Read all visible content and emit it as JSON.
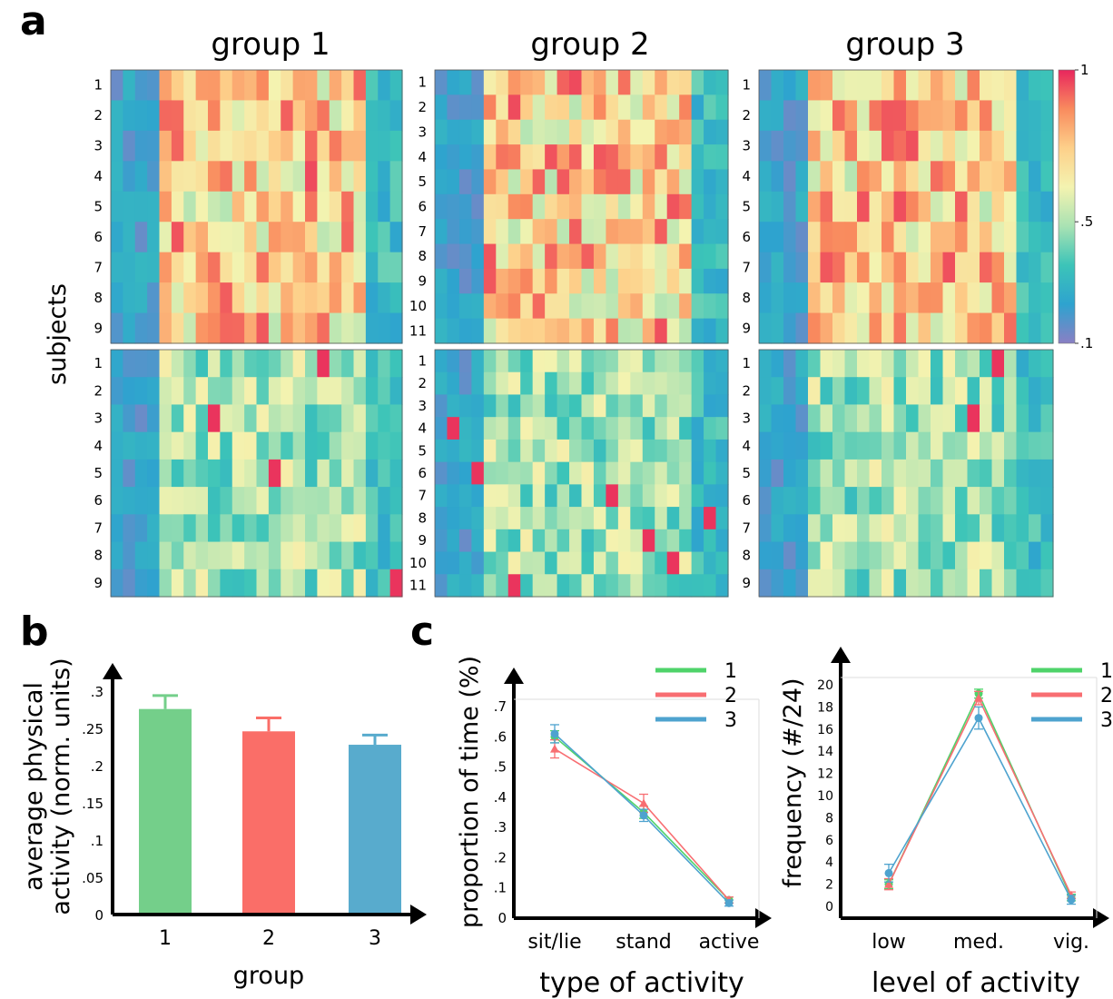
{
  "panels": {
    "a": "a",
    "b": "b",
    "c": "c"
  },
  "heatmaps": {
    "ylabel": "subjects",
    "groups": [
      {
        "title": "group 1",
        "rows": [
          "1",
          "2",
          "3",
          "4",
          "5",
          "6",
          "7",
          "8",
          "9"
        ]
      },
      {
        "title": "group 2",
        "rows": [
          "1",
          "2",
          "3",
          "4",
          "5",
          "6",
          "7",
          "8",
          "9",
          "10",
          "11"
        ]
      },
      {
        "title": "group 3",
        "rows": [
          "1",
          "2",
          "3",
          "4",
          "5",
          "6",
          "7",
          "8",
          "9"
        ]
      }
    ],
    "colorbar": {
      "ticks": [
        "1",
        ".5",
        ".1"
      ],
      "range": [
        0.1,
        1
      ],
      "colors": [
        "#8a7fc4",
        "#2ea3cf",
        "#3cc4b8",
        "#a9e2b3",
        "#f4f3b0",
        "#fdd08a",
        "#f98b5e",
        "#e8265d"
      ]
    },
    "columns": 24
  },
  "chart_data": [
    {
      "type": "bar",
      "panel": "b",
      "categories": [
        "1",
        "2",
        "3"
      ],
      "values": [
        0.276,
        0.246,
        0.228
      ],
      "errors": [
        0.018,
        0.018,
        0.013
      ],
      "colors": [
        "#74cf8a",
        "#fa6e68",
        "#58abcd"
      ],
      "xlabel": "group",
      "ylabel_line1": "average physical",
      "ylabel_line2": "activity (norm. units)",
      "ylim": [
        0,
        0.3
      ],
      "yticks": [
        "0",
        ".05",
        ".1",
        ".15",
        ".2",
        ".25",
        ".3"
      ]
    },
    {
      "type": "line",
      "panel": "c-left",
      "categories": [
        "sit/lie",
        "stand",
        "active"
      ],
      "series": [
        {
          "name": "1",
          "color": "#4fd36a",
          "values": [
            0.6,
            0.35,
            0.06
          ],
          "errors": [
            0.02,
            0.02,
            0.01
          ]
        },
        {
          "name": "2",
          "color": "#f86e72",
          "values": [
            0.56,
            0.38,
            0.06
          ],
          "errors": [
            0.03,
            0.03,
            0.01
          ]
        },
        {
          "name": "3",
          "color": "#4ea3cf",
          "values": [
            0.61,
            0.34,
            0.05
          ],
          "errors": [
            0.03,
            0.02,
            0.01
          ]
        }
      ],
      "xlabel": "type of activity",
      "ylabel": "proportion of time (%)",
      "ylim": [
        0,
        0.7
      ],
      "yticks": [
        "0",
        ".1",
        ".2",
        ".3",
        ".4",
        ".5",
        ".6",
        ".7"
      ]
    },
    {
      "type": "line",
      "panel": "c-right",
      "categories": [
        "low",
        "med.",
        "vig."
      ],
      "series": [
        {
          "name": "1",
          "color": "#4fd36a",
          "values": [
            2.0,
            19.2,
            0.8
          ],
          "errors": [
            0.4,
            0.4,
            0.3
          ]
        },
        {
          "name": "2",
          "color": "#f86e72",
          "values": [
            2.0,
            18.8,
            1.0
          ],
          "errors": [
            0.5,
            0.6,
            0.3
          ]
        },
        {
          "name": "3",
          "color": "#4ea3cf",
          "values": [
            3.0,
            17.0,
            0.6
          ],
          "errors": [
            0.8,
            1.0,
            0.4
          ]
        }
      ],
      "xlabel": "level of activity",
      "ylabel": "frequency (#/24)",
      "ylim": [
        0,
        20
      ],
      "yticks": [
        "0",
        "2",
        "4",
        "6",
        "8",
        "10",
        "12",
        "14",
        "16",
        "18",
        "20"
      ]
    }
  ]
}
